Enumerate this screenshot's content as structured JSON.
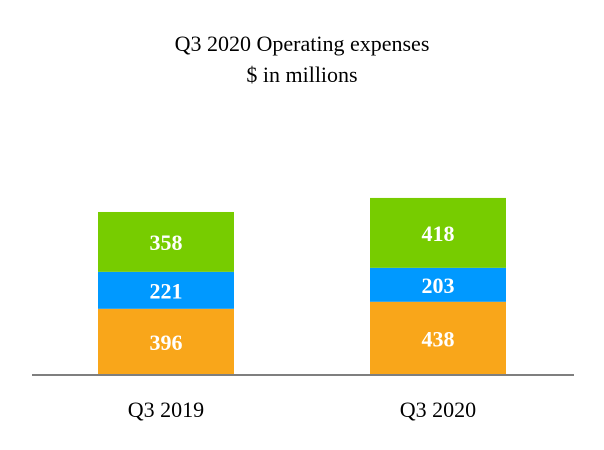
{
  "chart_data": {
    "type": "bar",
    "stacked": true,
    "title": "Q3 2020 Operating expenses",
    "subtitle": "$ in millions",
    "categories": [
      "Q3 2019",
      "Q3 2020"
    ],
    "series": [
      {
        "values": [
          396,
          438
        ],
        "color": "#F9A61A"
      },
      {
        "values": [
          221,
          203
        ],
        "color": "#0099FF"
      },
      {
        "values": [
          358,
          418
        ],
        "color": "#77CC00"
      }
    ],
    "xlabel": "",
    "ylabel": "",
    "grid": false,
    "legend": "none",
    "axis_color": "#7F7F7F"
  }
}
